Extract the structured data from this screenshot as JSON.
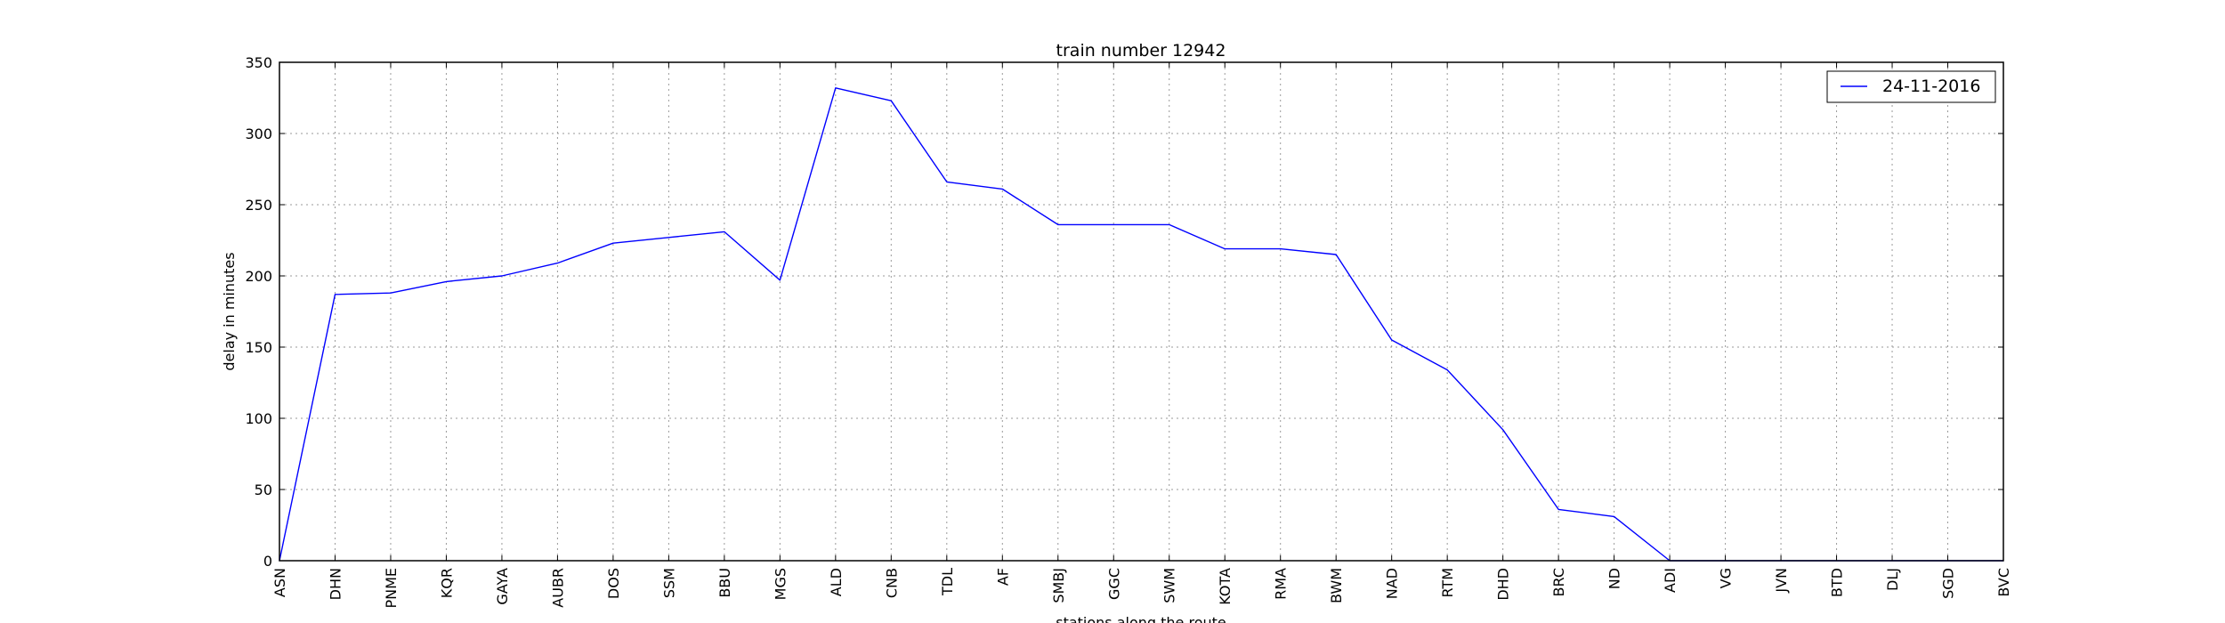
{
  "chart_data": {
    "type": "line",
    "title": "train number 12942",
    "xlabel": "stations along the route",
    "ylabel": "delay in minutes",
    "categories": [
      "ASN",
      "DHN",
      "PNME",
      "KQR",
      "GAYA",
      "AUBR",
      "DOS",
      "SSM",
      "BBU",
      "MGS",
      "ALD",
      "CNB",
      "TDL",
      "AF",
      "SMBJ",
      "GGC",
      "SWM",
      "KOTA",
      "RMA",
      "BWM",
      "NAD",
      "RTM",
      "DHD",
      "BRC",
      "ND",
      "ADI",
      "VG",
      "JVN",
      "BTD",
      "DLJ",
      "SGD",
      "BVC"
    ],
    "series": [
      {
        "name": "24-11-2016",
        "color": "#0000ff",
        "values": [
          0,
          187,
          188,
          196,
          200,
          209,
          223,
          227,
          231,
          197,
          332,
          323,
          266,
          261,
          236,
          236,
          236,
          219,
          219,
          215,
          155,
          134,
          92,
          36,
          31,
          0,
          0,
          0,
          0,
          0,
          0,
          0
        ]
      }
    ],
    "ylim": [
      0,
      350
    ],
    "yticks": [
      0,
      50,
      100,
      150,
      200,
      250,
      300,
      350
    ],
    "grid": true,
    "legend": "top-right"
  }
}
